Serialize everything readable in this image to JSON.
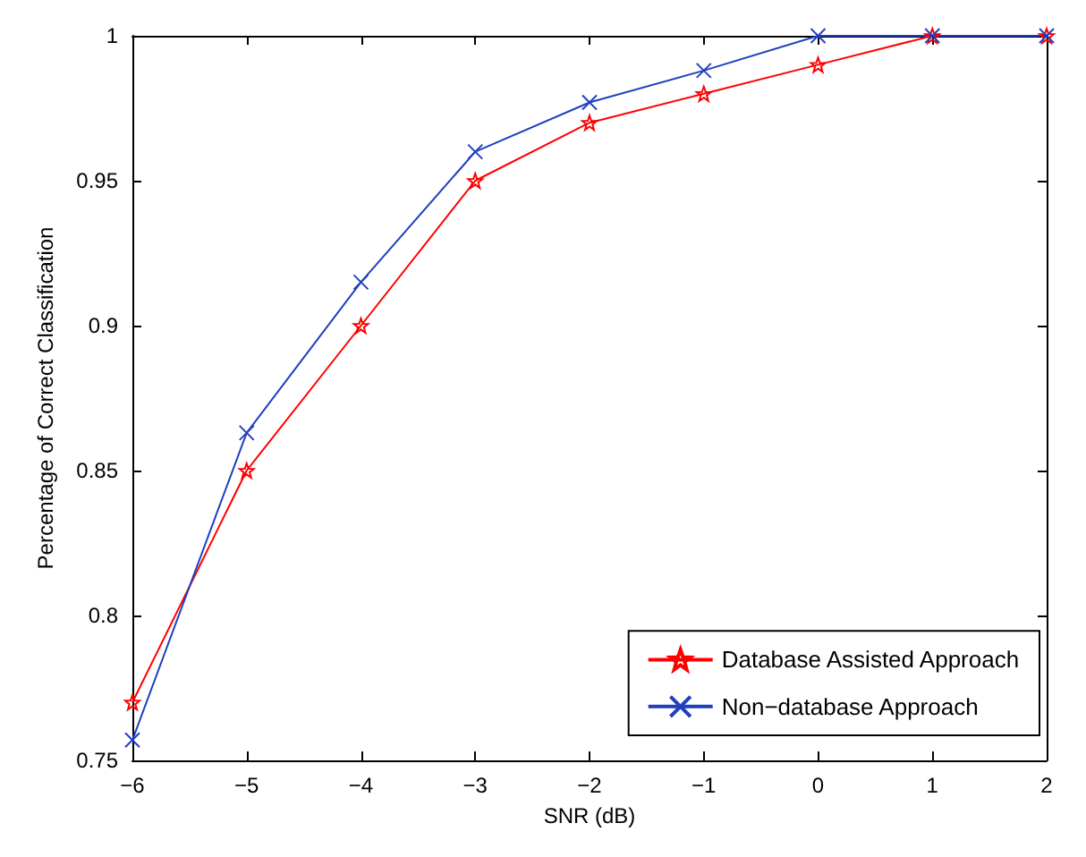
{
  "chart_data": {
    "type": "line",
    "xlabel": "SNR (dB)",
    "ylabel": "Percentage of Correct Classification",
    "x": [
      -6,
      -5,
      -4,
      -3,
      -2,
      -1,
      0,
      1,
      2
    ],
    "series": [
      {
        "name": "Database Assisted Approach",
        "color": "#ff0000",
        "marker": "star",
        "values": [
          0.77,
          0.85,
          0.9,
          0.95,
          0.97,
          0.98,
          0.99,
          1.0,
          1.0
        ]
      },
      {
        "name": "Non−database Approach",
        "color": "#1f3fbf",
        "marker": "cross",
        "values": [
          0.757,
          0.863,
          0.915,
          0.96,
          0.977,
          0.988,
          1.0,
          1.0,
          1.0
        ]
      }
    ],
    "xlim": [
      -6,
      2
    ],
    "xticks": [
      {
        "value": -6,
        "label": "−6"
      },
      {
        "value": -5,
        "label": "−5"
      },
      {
        "value": -4,
        "label": "−4"
      },
      {
        "value": -3,
        "label": "−3"
      },
      {
        "value": -2,
        "label": "−2"
      },
      {
        "value": -1,
        "label": "−1"
      },
      0,
      1,
      2
    ],
    "ylim": [
      0.75,
      1
    ],
    "yticks": [
      0.75,
      0.8,
      0.85,
      0.9,
      0.95,
      1
    ],
    "grid": false,
    "legend": "bottom right",
    "line_style": "solid"
  }
}
